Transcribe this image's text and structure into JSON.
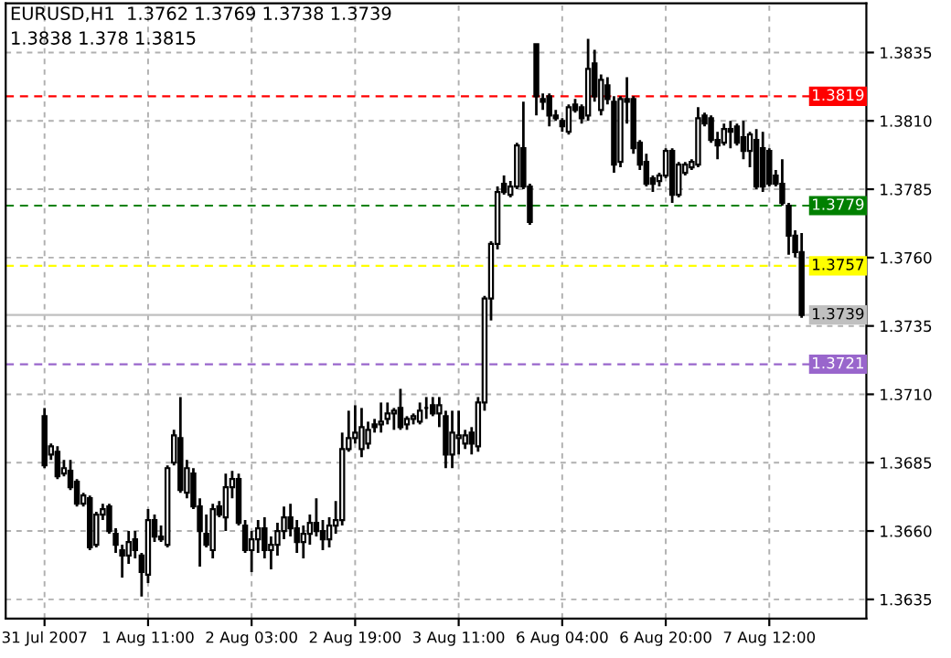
{
  "chart_data": {
    "type": "candlestick",
    "title": "EURUSD,H1  1.3762 1.3769 1.3738 1.3739",
    "subtitle": "1.3838 1.378 1.3815",
    "categories": [
      "31 Jul 2007",
      null,
      null,
      null,
      null,
      null,
      null,
      null,
      null,
      null,
      null,
      null,
      null,
      null,
      null,
      null,
      "1 Aug 11:00",
      null,
      null,
      null,
      null,
      null,
      null,
      null,
      null,
      null,
      null,
      null,
      null,
      null,
      null,
      null,
      "2 Aug 03:00",
      null,
      null,
      null,
      null,
      null,
      null,
      null,
      null,
      null,
      null,
      null,
      null,
      null,
      null,
      null,
      "2 Aug 19:00",
      null,
      null,
      null,
      null,
      null,
      null,
      null,
      null,
      null,
      null,
      null,
      null,
      null,
      null,
      null,
      "3 Aug 11:00",
      null,
      null,
      null,
      null,
      null,
      null,
      null,
      null,
      null,
      null,
      null,
      null,
      null,
      null,
      null,
      "6 Aug 04:00",
      null,
      null,
      null,
      null,
      null,
      null,
      null,
      null,
      null,
      null,
      null,
      null,
      null,
      null,
      null,
      "6 Aug 20:00",
      null,
      null,
      null,
      null,
      null,
      null,
      null,
      null,
      null,
      null,
      null,
      null,
      null,
      null,
      null,
      "7 Aug 12:00",
      null,
      null,
      null,
      null,
      null
    ],
    "ohlc": [
      [
        1.3702,
        1.3705,
        1.3683,
        1.3684
      ],
      [
        1.3688,
        1.3692,
        1.3686,
        1.3691
      ],
      [
        1.3689,
        1.3691,
        1.3679,
        1.368
      ],
      [
        1.3681,
        1.3686,
        1.368,
        1.3683
      ],
      [
        1.3682,
        1.3686,
        1.3675,
        1.3676
      ],
      [
        1.3678,
        1.3679,
        1.3669,
        1.367
      ],
      [
        1.367,
        1.3674,
        1.3669,
        1.3673
      ],
      [
        1.3672,
        1.3673,
        1.3653,
        1.3654
      ],
      [
        1.3655,
        1.3667,
        1.3654,
        1.3666
      ],
      [
        1.3666,
        1.367,
        1.3664,
        1.3668
      ],
      [
        1.3669,
        1.367,
        1.3659,
        1.366
      ],
      [
        1.3659,
        1.3661,
        1.3652,
        1.3655
      ],
      [
        1.3653,
        1.3655,
        1.3643,
        1.3651
      ],
      [
        1.3651,
        1.366,
        1.3648,
        1.3656
      ],
      [
        1.3657,
        1.366,
        1.365,
        1.3653
      ],
      [
        1.3651,
        1.3652,
        1.3636,
        1.3645
      ],
      [
        1.3644,
        1.3668,
        1.3641,
        1.3664
      ],
      [
        1.3664,
        1.3666,
        1.3656,
        1.3658
      ],
      [
        1.3658,
        1.3662,
        1.3656,
        1.3657
      ],
      [
        1.3655,
        1.3684,
        1.3654,
        1.3683
      ],
      [
        1.3685,
        1.3697,
        1.3684,
        1.3695
      ],
      [
        1.3694,
        1.3709,
        1.3674,
        1.3675
      ],
      [
        1.3674,
        1.3686,
        1.3672,
        1.3683
      ],
      [
        1.3681,
        1.3683,
        1.3668,
        1.3669
      ],
      [
        1.3669,
        1.3672,
        1.3647,
        1.366
      ],
      [
        1.3659,
        1.3666,
        1.3654,
        1.3655
      ],
      [
        1.3653,
        1.367,
        1.365,
        1.3668
      ],
      [
        1.3669,
        1.3671,
        1.3665,
        1.3666
      ],
      [
        1.3665,
        1.3681,
        1.366,
        1.3676
      ],
      [
        1.3676,
        1.3682,
        1.3672,
        1.3679
      ],
      [
        1.3679,
        1.3681,
        1.3662,
        1.3663
      ],
      [
        1.3662,
        1.3664,
        1.3652,
        1.3653
      ],
      [
        1.3653,
        1.366,
        1.3645,
        1.3657
      ],
      [
        1.3657,
        1.3664,
        1.3652,
        1.3661
      ],
      [
        1.3661,
        1.3665,
        1.365,
        1.3653
      ],
      [
        1.3653,
        1.3658,
        1.3646,
        1.3655
      ],
      [
        1.3655,
        1.3663,
        1.3651,
        1.366
      ],
      [
        1.366,
        1.3669,
        1.3657,
        1.3665
      ],
      [
        1.3665,
        1.367,
        1.3658,
        1.3661
      ],
      [
        1.3661,
        1.3664,
        1.3652,
        1.3656
      ],
      [
        1.3656,
        1.3662,
        1.365,
        1.3659
      ],
      [
        1.3659,
        1.3666,
        1.3655,
        1.3663
      ],
      [
        1.3663,
        1.3672,
        1.3658,
        1.366
      ],
      [
        1.366,
        1.3664,
        1.3653,
        1.3657
      ],
      [
        1.3657,
        1.3665,
        1.3654,
        1.3662
      ],
      [
        1.3662,
        1.3671,
        1.3659,
        1.3664
      ],
      [
        1.3664,
        1.3696,
        1.3662,
        1.369
      ],
      [
        1.369,
        1.3704,
        1.3689,
        1.3694
      ],
      [
        1.3694,
        1.3706,
        1.3692,
        1.3696
      ],
      [
        1.369,
        1.3705,
        1.3687,
        1.3698
      ],
      [
        1.3692,
        1.37,
        1.369,
        1.3697
      ],
      [
        1.3699,
        1.3701,
        1.3696,
        1.3698
      ],
      [
        1.3699,
        1.3707,
        1.3696,
        1.37
      ],
      [
        1.3701,
        1.3707,
        1.3699,
        1.3703
      ],
      [
        1.3703,
        1.3705,
        1.3697,
        1.3704
      ],
      [
        1.3705,
        1.3712,
        1.3697,
        1.3698
      ],
      [
        1.3699,
        1.3702,
        1.3697,
        1.3701
      ],
      [
        1.3701,
        1.3703,
        1.3699,
        1.3702
      ],
      [
        1.37,
        1.3707,
        1.3699,
        1.3704
      ],
      [
        1.3705,
        1.3709,
        1.3701,
        1.3705
      ],
      [
        1.3706,
        1.3709,
        1.3702,
        1.3703
      ],
      [
        1.3703,
        1.3709,
        1.3698,
        1.3706
      ],
      [
        1.3702,
        1.3704,
        1.3683,
        1.3688
      ],
      [
        1.3688,
        1.3704,
        1.3683,
        1.3696
      ],
      [
        1.3694,
        1.3704,
        1.3688,
        1.3695
      ],
      [
        1.3692,
        1.3697,
        1.369,
        1.3695
      ],
      [
        1.3696,
        1.3698,
        1.3688,
        1.3692
      ],
      [
        1.3691,
        1.3709,
        1.3689,
        1.3707
      ],
      [
        1.3707,
        1.3746,
        1.3704,
        1.3745
      ],
      [
        1.3745,
        1.3766,
        1.3737,
        1.3765
      ],
      [
        1.3765,
        1.3786,
        1.3763,
        1.3784
      ],
      [
        1.3787,
        1.379,
        1.3783,
        1.3784
      ],
      [
        1.3783,
        1.3788,
        1.3782,
        1.3786
      ],
      [
        1.3786,
        1.3802,
        1.3785,
        1.3801
      ],
      [
        1.38,
        1.3817,
        1.3785,
        1.3786
      ],
      [
        1.3786,
        1.3787,
        1.3772,
        1.3773
      ],
      [
        1.3838,
        1.3838,
        1.3812,
        1.3819
      ],
      [
        1.3818,
        1.382,
        1.3814,
        1.3817
      ],
      [
        1.3819,
        1.382,
        1.3808,
        1.3812
      ],
      [
        1.3812,
        1.3814,
        1.381,
        1.3811
      ],
      [
        1.381,
        1.3811,
        1.3806,
        1.3808
      ],
      [
        1.3806,
        1.3816,
        1.3805,
        1.3815
      ],
      [
        1.3816,
        1.3818,
        1.3813,
        1.3814
      ],
      [
        1.3815,
        1.3816,
        1.3809,
        1.3811
      ],
      [
        1.3812,
        1.384,
        1.381,
        1.3829
      ],
      [
        1.3831,
        1.3836,
        1.3817,
        1.3819
      ],
      [
        1.3814,
        1.3827,
        1.3812,
        1.3825
      ],
      [
        1.3823,
        1.3826,
        1.3816,
        1.3818
      ],
      [
        1.3817,
        1.3819,
        1.3791,
        1.3794
      ],
      [
        1.3795,
        1.3819,
        1.3793,
        1.3818
      ],
      [
        1.3818,
        1.3826,
        1.3809,
        1.3817
      ],
      [
        1.3818,
        1.3819,
        1.3798,
        1.38
      ],
      [
        1.3802,
        1.3803,
        1.3792,
        1.3794
      ],
      [
        1.3795,
        1.3798,
        1.3786,
        1.3787
      ],
      [
        1.3789,
        1.379,
        1.3784,
        1.3787
      ],
      [
        1.3788,
        1.3791,
        1.3786,
        1.379
      ],
      [
        1.379,
        1.38,
        1.3789,
        1.3799
      ],
      [
        1.3799,
        1.38,
        1.378,
        1.3783
      ],
      [
        1.3783,
        1.3795,
        1.3782,
        1.3794
      ],
      [
        1.3791,
        1.3795,
        1.379,
        1.3794
      ],
      [
        1.3793,
        1.3796,
        1.3792,
        1.3795
      ],
      [
        1.3794,
        1.3815,
        1.3793,
        1.3811
      ],
      [
        1.3812,
        1.3813,
        1.3808,
        1.3809
      ],
      [
        1.3811,
        1.3812,
        1.3802,
        1.3803
      ],
      [
        1.3803,
        1.3806,
        1.3796,
        1.3801
      ],
      [
        1.3802,
        1.3809,
        1.3801,
        1.3807
      ],
      [
        1.3807,
        1.381,
        1.38,
        1.3806
      ],
      [
        1.3808,
        1.3809,
        1.3801,
        1.3802
      ],
      [
        1.3804,
        1.381,
        1.3796,
        1.3799
      ],
      [
        1.3799,
        1.3806,
        1.3793,
        1.3805
      ],
      [
        1.3803,
        1.3807,
        1.3785,
        1.3786
      ],
      [
        1.38,
        1.3806,
        1.3784,
        1.3786
      ],
      [
        1.3799,
        1.38,
        1.3786,
        1.3787
      ],
      [
        1.379,
        1.3792,
        1.3786,
        1.3787
      ],
      [
        1.3787,
        1.3796,
        1.3779,
        1.378
      ],
      [
        1.3779,
        1.378,
        1.3761,
        1.3768
      ],
      [
        1.3768,
        1.377,
        1.376,
        1.3762
      ],
      [
        1.3762,
        1.3769,
        1.3738,
        1.3739
      ]
    ],
    "ylim": [
      1.3628,
      1.3853
    ],
    "yticks": [
      1.3835,
      {
        "value": 1.381,
        "label": "1.3810"
      },
      1.3785,
      {
        "value": 1.376,
        "label": "1.3760"
      },
      1.3735,
      {
        "value": 1.371,
        "label": "1.3710"
      },
      1.3685,
      {
        "value": 1.366,
        "label": "1.3660"
      },
      1.3635
    ],
    "ref_lines": [
      {
        "axis": "y",
        "value": 1.3819,
        "label": "1.3819",
        "color": "#ff0000",
        "line_style": "dashed"
      },
      {
        "axis": "y",
        "value": 1.3779,
        "label": "1.3779",
        "color": "#008000",
        "line_style": "dashed"
      },
      {
        "axis": "y",
        "value": 1.3757,
        "label": "1.3757",
        "color": "#ffff00",
        "line_style": "dashed"
      },
      {
        "axis": "y",
        "value": 1.3739,
        "label": "1.3739",
        "color": "#c0c0c0",
        "line_style": "solid"
      },
      {
        "axis": "y",
        "value": 1.3721,
        "label": "1.3721",
        "color": "#9966cc",
        "line_style": "dashed"
      }
    ],
    "grid": true
  }
}
